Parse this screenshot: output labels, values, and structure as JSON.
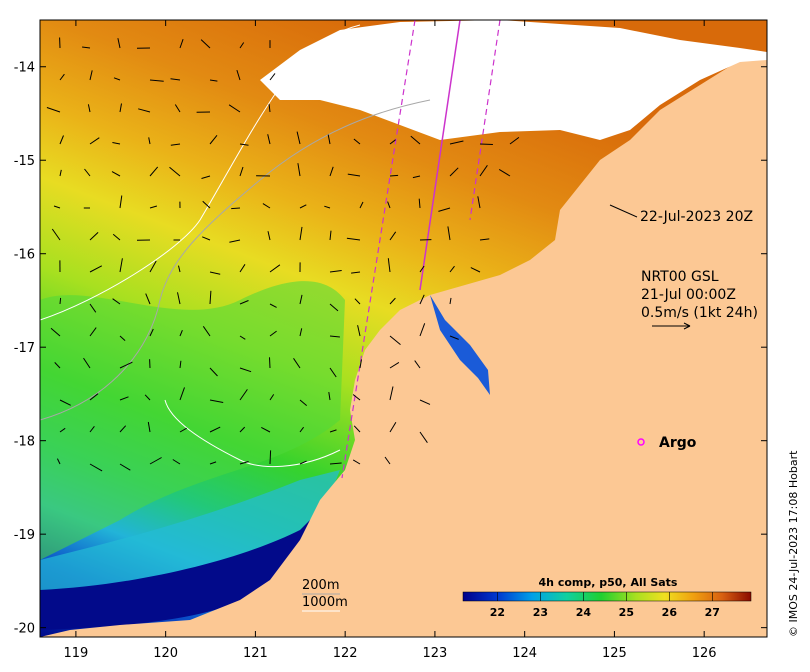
{
  "map": {
    "lon_ticks": [
      "119",
      "120",
      "121",
      "122",
      "123",
      "124",
      "125",
      "126"
    ],
    "lat_ticks": [
      "-14",
      "-15",
      "-16",
      "-17",
      "-18",
      "-19",
      "-20"
    ],
    "lon_range": [
      118.6,
      126.7
    ],
    "lat_range": [
      -20.1,
      -13.5
    ]
  },
  "annotations": {
    "sst_time": "22-Jul-2023 20Z",
    "current_source": "NRT00 GSL",
    "current_time": "21-Jul 00:00Z",
    "current_scale": "0.5m/s (1kt 24h)",
    "argo_label": "Argo"
  },
  "isobaths": {
    "shallow": "200m",
    "deep": "1000m"
  },
  "colorbar": {
    "title": "4h comp, p50, All Sats",
    "ticks": [
      "22",
      "23",
      "24",
      "25",
      "26",
      "27"
    ],
    "range": [
      21.2,
      27.9
    ]
  },
  "credit": "© IMOS 24-Jul-2023 17:08 Hobart",
  "colors": {
    "land": "#fcc894",
    "cloud": "#ffffff",
    "argo_marker": "#ff00ff",
    "track": "#cc33cc"
  }
}
